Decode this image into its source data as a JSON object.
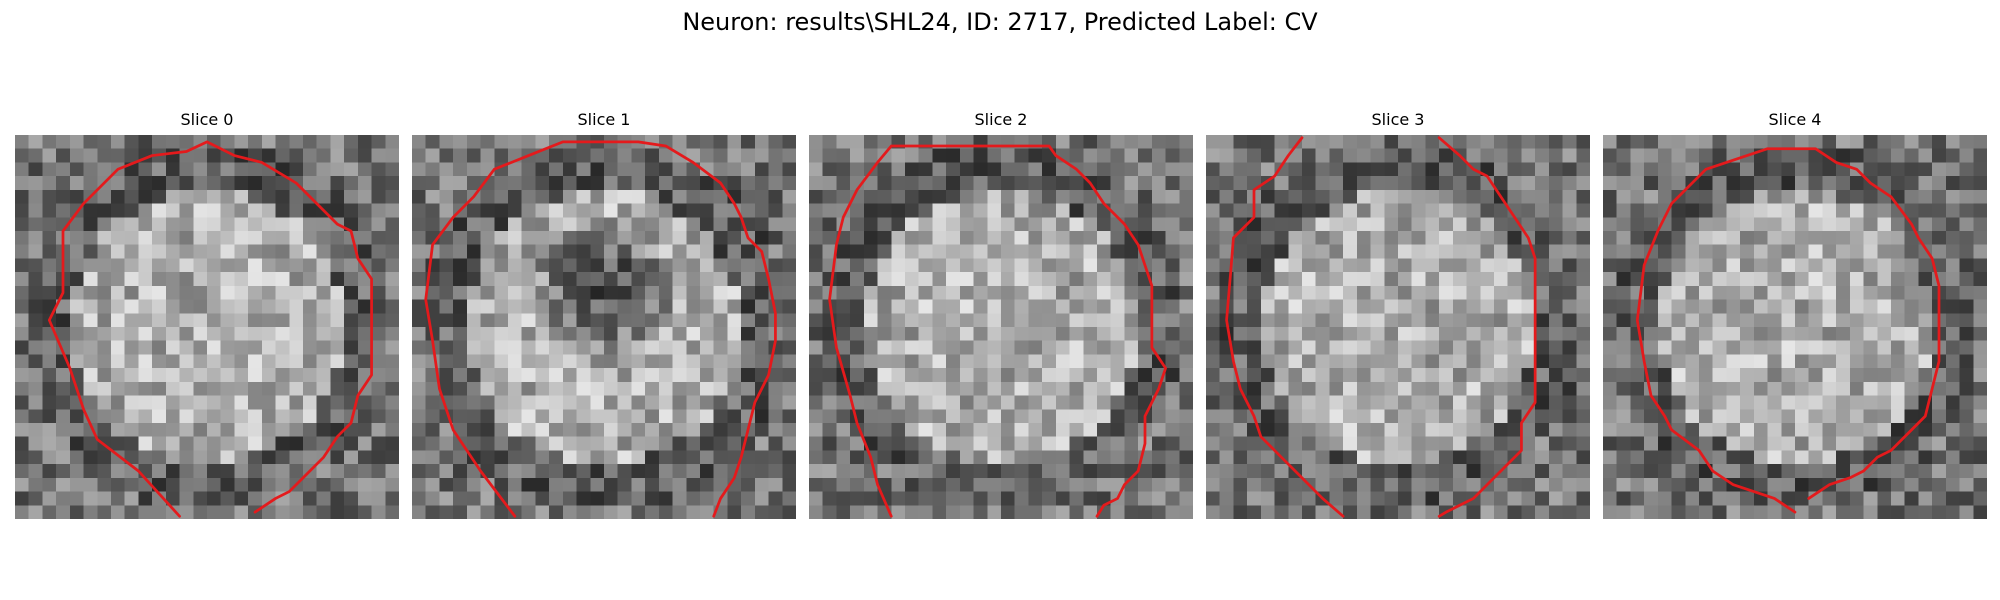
{
  "figure": {
    "title": "Neuron: results\\SHL24, ID: 2717, Predicted Label: CV"
  },
  "contour_color": "#e41a1c",
  "image_grid_cells": 28,
  "panels": [
    {
      "label": "Slice 0",
      "contour": [
        [
          [
            12.0,
            27.8
          ],
          [
            9.0,
            24.5
          ],
          [
            6.0,
            22.2
          ],
          [
            5.0,
            20.0
          ],
          [
            4.0,
            17.0
          ],
          [
            2.5,
            13.5
          ],
          [
            3.5,
            11.5
          ],
          [
            3.5,
            7.0
          ],
          [
            5.0,
            5.0
          ],
          [
            7.5,
            2.5
          ],
          [
            10.0,
            1.5
          ],
          [
            12.5,
            1.2
          ],
          [
            14.0,
            0.5
          ],
          [
            16.0,
            1.5
          ],
          [
            18.0,
            2.0
          ],
          [
            20.5,
            3.5
          ],
          [
            23.5,
            6.5
          ],
          [
            24.5,
            7.0
          ],
          [
            25.0,
            9.0
          ],
          [
            26.0,
            10.5
          ],
          [
            26.0,
            17.5
          ],
          [
            25.0,
            19.0
          ],
          [
            24.5,
            21.0
          ],
          [
            23.5,
            22.0
          ],
          [
            22.5,
            23.5
          ],
          [
            21.0,
            25.0
          ],
          [
            20.0,
            26.0
          ],
          [
            19.0,
            26.5
          ],
          [
            17.5,
            27.5
          ]
        ]
      ]
    },
    {
      "label": "Slice 1",
      "contour": [
        [
          [
            7.5,
            27.8
          ],
          [
            5.0,
            24.5
          ],
          [
            3.0,
            21.5
          ],
          [
            2.0,
            18.5
          ],
          [
            1.5,
            15.0
          ],
          [
            1.0,
            12.0
          ],
          [
            1.5,
            8.0
          ],
          [
            3.0,
            6.0
          ],
          [
            4.5,
            4.5
          ],
          [
            6.0,
            2.5
          ],
          [
            8.5,
            1.5
          ],
          [
            11.0,
            0.5
          ],
          [
            13.5,
            0.5
          ],
          [
            16.5,
            0.5
          ],
          [
            18.5,
            0.8
          ],
          [
            20.5,
            2.0
          ],
          [
            22.5,
            3.5
          ],
          [
            23.5,
            5.0
          ],
          [
            24.0,
            6.0
          ],
          [
            24.5,
            7.5
          ],
          [
            25.5,
            8.5
          ],
          [
            26.0,
            10.5
          ],
          [
            26.5,
            13.0
          ],
          [
            26.5,
            15.0
          ],
          [
            26.0,
            17.5
          ],
          [
            25.0,
            19.5
          ],
          [
            24.5,
            21.5
          ],
          [
            24.0,
            23.5
          ],
          [
            23.5,
            25.0
          ],
          [
            22.5,
            26.5
          ],
          [
            22.0,
            27.8
          ]
        ]
      ]
    },
    {
      "label": "Slice 2",
      "contour": [
        [
          [
            6.0,
            27.8
          ],
          [
            5.0,
            25.5
          ],
          [
            4.5,
            23.5
          ],
          [
            3.5,
            21.0
          ],
          [
            3.0,
            19.0
          ],
          [
            2.0,
            15.5
          ],
          [
            1.5,
            12.0
          ],
          [
            2.0,
            8.0
          ],
          [
            2.5,
            6.0
          ],
          [
            3.5,
            4.0
          ],
          [
            5.0,
            2.0
          ],
          [
            6.0,
            0.8
          ],
          [
            10.0,
            0.8
          ],
          [
            13.0,
            0.8
          ],
          [
            17.5,
            0.8
          ],
          [
            18.0,
            1.5
          ],
          [
            19.5,
            2.5
          ],
          [
            20.5,
            3.5
          ],
          [
            21.5,
            5.0
          ],
          [
            23.0,
            6.5
          ],
          [
            24.0,
            8.0
          ],
          [
            24.5,
            9.5
          ],
          [
            25.0,
            11.0
          ],
          [
            25.0,
            13.5
          ],
          [
            25.0,
            15.5
          ],
          [
            26.0,
            17.0
          ],
          [
            25.5,
            18.5
          ],
          [
            24.5,
            20.5
          ],
          [
            24.5,
            22.5
          ],
          [
            24.0,
            24.5
          ],
          [
            23.0,
            25.5
          ],
          [
            22.5,
            26.5
          ],
          [
            21.5,
            27.0
          ],
          [
            21.0,
            27.8
          ]
        ]
      ]
    },
    {
      "label": "Slice 3",
      "contour": [
        [
          [
            10.0,
            27.8
          ],
          [
            8.5,
            26.5
          ],
          [
            7.0,
            25.0
          ],
          [
            5.5,
            23.5
          ],
          [
            4.0,
            22.0
          ],
          [
            3.5,
            20.5
          ],
          [
            2.5,
            18.5
          ],
          [
            2.0,
            16.5
          ],
          [
            1.5,
            13.5
          ],
          [
            1.8,
            10.0
          ],
          [
            2.0,
            7.5
          ],
          [
            3.5,
            6.0
          ],
          [
            3.5,
            4.0
          ],
          [
            5.0,
            3.0
          ],
          [
            6.0,
            1.5
          ],
          [
            7.0,
            0.2
          ]
        ],
        [
          [
            17.0,
            0.2
          ],
          [
            18.5,
            1.5
          ],
          [
            19.5,
            2.5
          ],
          [
            20.5,
            3.0
          ],
          [
            21.5,
            4.5
          ],
          [
            22.5,
            6.0
          ],
          [
            23.5,
            7.5
          ],
          [
            24.0,
            9.0
          ],
          [
            24.0,
            12.5
          ],
          [
            24.0,
            16.5
          ],
          [
            24.0,
            19.5
          ],
          [
            23.0,
            21.0
          ],
          [
            23.0,
            23.0
          ],
          [
            21.5,
            24.5
          ],
          [
            20.5,
            25.5
          ],
          [
            19.5,
            26.5
          ],
          [
            18.5,
            27.0
          ],
          [
            17.5,
            27.5
          ],
          [
            17.0,
            27.8
          ]
        ]
      ]
    },
    {
      "label": "Slice 4",
      "contour": [
        [
          [
            14.0,
            27.5
          ],
          [
            12.5,
            26.5
          ],
          [
            11.0,
            26.0
          ],
          [
            9.5,
            25.5
          ],
          [
            8.0,
            24.5
          ],
          [
            7.0,
            23.0
          ],
          [
            5.0,
            21.5
          ],
          [
            4.5,
            20.5
          ],
          [
            3.5,
            19.0
          ],
          [
            3.0,
            16.5
          ],
          [
            2.5,
            13.5
          ],
          [
            3.0,
            9.5
          ],
          [
            4.0,
            7.0
          ],
          [
            5.0,
            5.0
          ],
          [
            6.0,
            4.0
          ],
          [
            7.5,
            2.5
          ],
          [
            9.0,
            2.0
          ],
          [
            10.5,
            1.5
          ],
          [
            12.0,
            1.0
          ],
          [
            15.5,
            1.0
          ],
          [
            17.0,
            2.0
          ],
          [
            18.5,
            2.5
          ],
          [
            19.5,
            3.5
          ],
          [
            21.0,
            4.5
          ],
          [
            22.5,
            6.5
          ],
          [
            23.0,
            7.5
          ],
          [
            24.0,
            9.0
          ],
          [
            24.5,
            11.0
          ],
          [
            24.5,
            14.5
          ],
          [
            24.5,
            16.5
          ],
          [
            24.0,
            18.5
          ],
          [
            23.5,
            20.5
          ],
          [
            22.5,
            21.5
          ],
          [
            21.0,
            23.0
          ],
          [
            20.0,
            23.5
          ],
          [
            19.0,
            24.5
          ],
          [
            18.0,
            25.0
          ],
          [
            16.5,
            25.5
          ],
          [
            15.0,
            26.5
          ]
        ]
      ]
    }
  ]
}
